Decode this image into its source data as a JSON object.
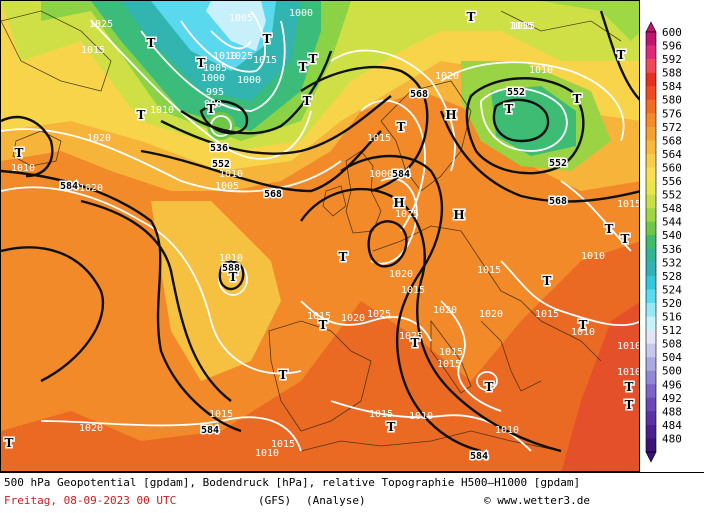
{
  "footer": {
    "caption": "500 hPa Geopotential [gpdam], Bodendruck [hPa], relative Topographie H500–H1000 [gpdam]",
    "valid_time": "Freitag, 08-09-2023  00 UTC",
    "model": "(GFS)",
    "mode": "(Analyse)",
    "credit": "© www.wetter3.de"
  },
  "legend": {
    "values": [
      "600",
      "596",
      "592",
      "588",
      "584",
      "580",
      "576",
      "572",
      "568",
      "564",
      "560",
      "556",
      "552",
      "548",
      "544",
      "540",
      "536",
      "532",
      "528",
      "524",
      "520",
      "516",
      "512",
      "508",
      "504",
      "500",
      "496",
      "492",
      "488",
      "484",
      "480"
    ],
    "colors": [
      "#c0146e",
      "#e0287a",
      "#f04a5a",
      "#e8301e",
      "#f04a22",
      "#f26c22",
      "#f48a28",
      "#f6a030",
      "#f8b83a",
      "#f8ce48",
      "#f8e050",
      "#e8e648",
      "#c8e046",
      "#9ed644",
      "#6ec846",
      "#3ebc6a",
      "#32b496",
      "#30b2b8",
      "#32c8dc",
      "#5adcf0",
      "#96e8f6",
      "#c8f2fa",
      "#e2e6f6",
      "#c8c8ec",
      "#aaaae2",
      "#9288d6",
      "#7c64c8",
      "#6a48b8",
      "#5a32a6",
      "#4a2090",
      "#3a1278"
    ]
  },
  "geopotential_labels": [
    "536",
    "552",
    "568",
    "584",
    "552",
    "568",
    "584",
    "588",
    "552",
    "568",
    "584",
    "552",
    "584",
    "584",
    "584"
  ],
  "pressure_labels": [
    "1025",
    "1015",
    "1010",
    "1020",
    "1005",
    "995",
    "990",
    "1000",
    "1025",
    "1020",
    "1015",
    "1010",
    "1000",
    "1010",
    "1005",
    "1015",
    "1010",
    "1025",
    "1020",
    "1010",
    "1020",
    "1025",
    "1015",
    "1015",
    "1020",
    "1015",
    "1015",
    "1015",
    "1025",
    "1015",
    "1015",
    "1010",
    "1010",
    "1020",
    "1015",
    "1015",
    "1010",
    "1010",
    "1015",
    "1010",
    "1000",
    "1010",
    "1015",
    "1020",
    "1010",
    "1010",
    "1020",
    "1015",
    "1005",
    "1000"
  ],
  "centers": {
    "lows": [
      "T",
      "T",
      "T",
      "T",
      "T",
      "T",
      "T",
      "T",
      "T",
      "T",
      "T",
      "T",
      "T",
      "T",
      "T",
      "T",
      "T",
      "T",
      "T",
      "T",
      "T",
      "T",
      "T",
      "T",
      "T",
      "T",
      "T",
      "T"
    ],
    "highs": [
      "H",
      "H",
      "H"
    ]
  }
}
